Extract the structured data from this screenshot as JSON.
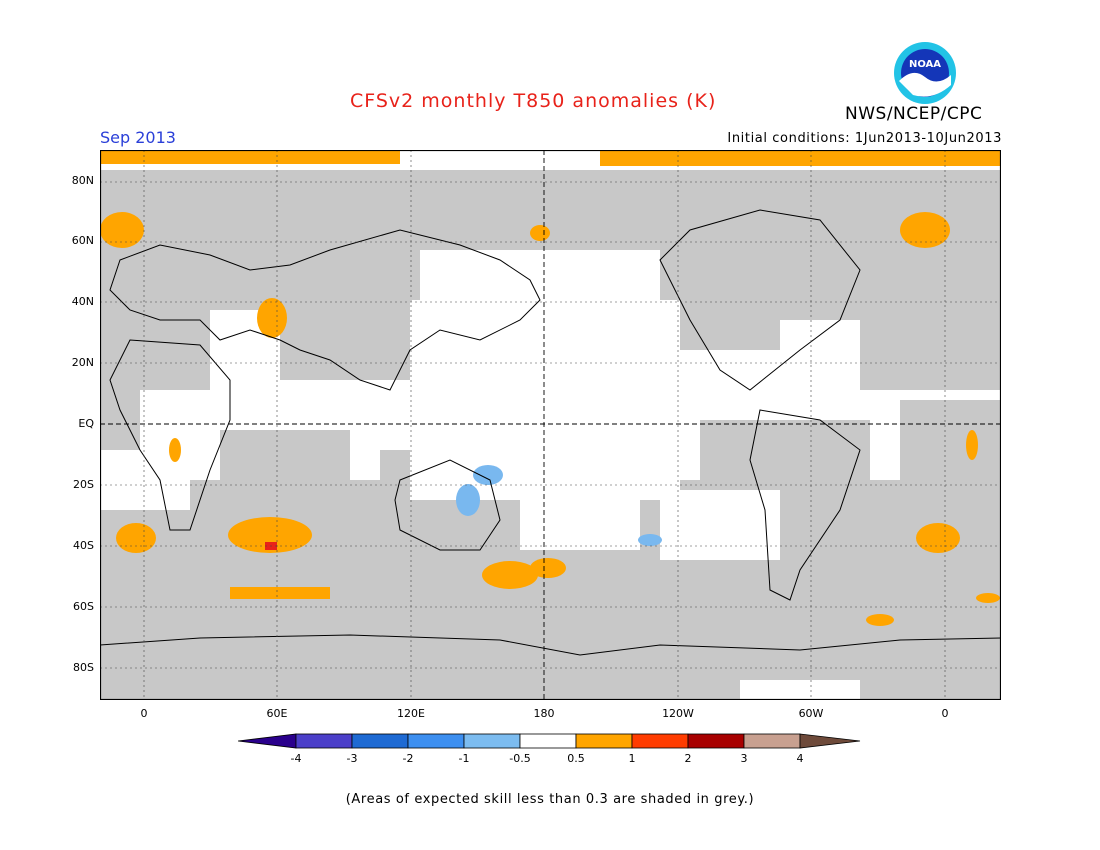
{
  "header": {
    "title": "CFSv2 monthly T850 anomalies (K)",
    "month": "Sep 2013",
    "initial_conditions": "Initial conditions: 1Jun2013-10Jun2013",
    "agency": "NWS/NCEP/CPC",
    "logo_text": "NOAA"
  },
  "map": {
    "lat_labels": [
      "80N",
      "60N",
      "40N",
      "20N",
      "EQ",
      "20S",
      "40S",
      "60S",
      "80S"
    ],
    "lon_labels": [
      "0",
      "60E",
      "120E",
      "180",
      "120W",
      "60W",
      "0"
    ],
    "colors": {
      "grey_low_skill": "#c8c8c8",
      "orange": "#ffa500",
      "light_blue": "#79b8ef",
      "red": "#e8221a"
    }
  },
  "colorbar": {
    "labels": [
      "-4",
      "-3",
      "-2",
      "-1",
      "-0.5",
      "0.5",
      "1",
      "2",
      "3",
      "4"
    ],
    "colors": [
      "#2a008c",
      "#4b3fc9",
      "#1e6ad3",
      "#3d8ff0",
      "#7cbcf0",
      "#ffffff",
      "#ffa500",
      "#ff3c00",
      "#a80000",
      "#c8a090",
      "#6e4a3a"
    ]
  },
  "footer": {
    "note": "(Areas of expected skill less than 0.3 are shaded in grey.)"
  }
}
